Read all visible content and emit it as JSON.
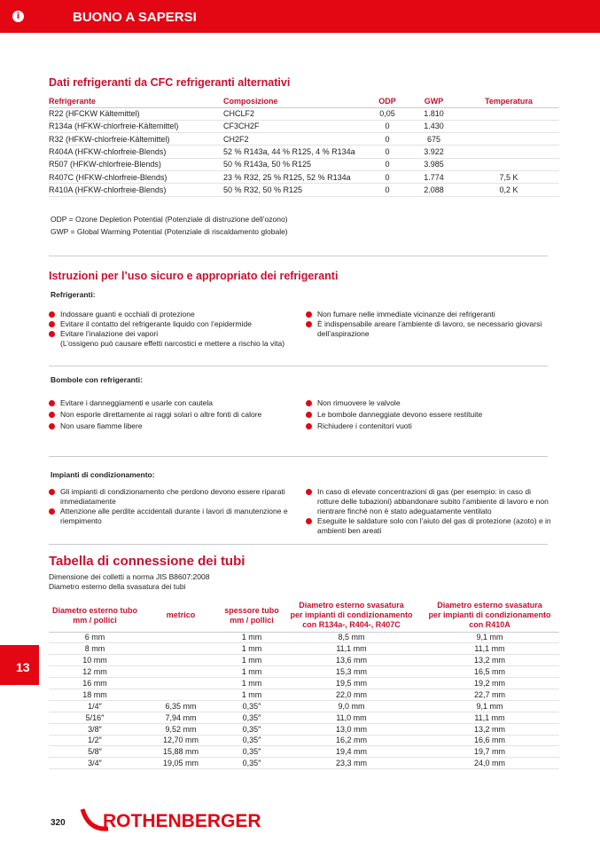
{
  "header": {
    "title": "BUONO A SAPERSI",
    "icon": "info-icon"
  },
  "refrigerants": {
    "title": "Dati refrigeranti da CFC refrigeranti alternativi",
    "columns": [
      "Refrigerante",
      "Composizione",
      "ODP",
      "GWP",
      "Temperatura"
    ],
    "rows": [
      [
        "R22 (HFCKW Kältemittel)",
        "CHCLF2",
        "0,05",
        "1.810",
        ""
      ],
      [
        "R134a (HFKW-chlorfreie-Kältemittel)",
        "CF3CH2F",
        "0",
        "1.430",
        ""
      ],
      [
        "R32 (HFKW-chlorfreie-Kältemittel)",
        "CH2F2",
        "0",
        "675",
        ""
      ],
      [
        "R404A (HFKW-chlorfreie-Blends)",
        "52 % R143a, 44 % R125, 4 % R134a",
        "0",
        "3.922",
        ""
      ],
      [
        "R507 (HFKW-chlorfreie-Blends)",
        "50 % R143a, 50 % R125",
        "0",
        "3.985",
        ""
      ],
      [
        "R407C (HFKW-chlorfreie-Blends)",
        "23 % R32, 25 % R125, 52 % R134a",
        "0",
        "1.774",
        "7,5 K"
      ],
      [
        "R410A (HFKW-chlorfreie-Blends)",
        "50 % R32, 50 % R125",
        "0",
        "2.088",
        "0,2 K"
      ]
    ],
    "notes": [
      "ODP = Ozone Depletion Potential (Potenziale di distruzione dell’ozono)",
      "GWP = Global Warming Potential  (Potenziale di riscaldamento globale)"
    ]
  },
  "safety": {
    "title": "Istruzioni per l’uso sicuro e appropriato dei refrigeranti",
    "groups": [
      {
        "label": "Refrigeranti:",
        "left": [
          "Indossare guanti e occhiali di protezione",
          "Evitare il contatto del refrigerante liquido con l’epidermide",
          "Evitare l’inalazione dei vapori\n(L’ossigeno può causare effetti narcostici e mettere a rischio la vita)"
        ],
        "right": [
          "Non fumare nelle immediate vicinanze dei refrigeranti",
          "È indispensabile areare l’ambiente di lavoro, se necessario giovarsi dell’aspirazione"
        ]
      },
      {
        "label": "Bombole con refrigeranti:",
        "left": [
          "Evitare i danneggiamenti e usarle con cautela",
          "Non esporle direttamente ai raggi solari o altre fonti di calore",
          "Non usare fiamme libere"
        ],
        "right": [
          "Non rimuovere le valvole",
          "Le bombole danneggiate devono essere restituite",
          "Richiudere i contenitori vuoti"
        ]
      },
      {
        "label": "Impianti di condizionamento:",
        "left": [
          "Gli impianti di condizionamento che perdono devono essere riparati immediatamente",
          "Attenzione alle perdite accidentali durante i lavori di manutenzione e riempimento"
        ],
        "right": [
          "In caso di elevate concentrazioni di gas (per esempio: in caso di rotture delle tubazioni) abbandonare subito l’ambiente di lavoro e non rientrare finché non è stato adeguatamente ventilato",
          "Eseguite le saldature solo con l’aiuto del gas di protezione (azoto) e in ambienti ben areati"
        ]
      }
    ]
  },
  "pipes": {
    "title": "Tabella di connessione dei tubi",
    "subtitle": [
      "Dimensione dei colletti a norma JIS B8607:2008",
      "Diametro esterno della svasatura dei tubi"
    ],
    "columns": [
      "Diametro esterno tubo\nmm / pollici",
      "metrico",
      "spessore tubo\nmm / pollici",
      "Diametro esterno svasatura\nper impianti di condizionamento\ncon R134a-, R404-, R407C",
      "Diametro esterno svasatura\nper impianti di condizionamento\ncon R410A"
    ],
    "rows": [
      [
        "6 mm",
        "",
        "1 mm",
        "8,5 mm",
        "9,1 mm"
      ],
      [
        "8 mm",
        "",
        "1 mm",
        "11,1 mm",
        "11,1 mm"
      ],
      [
        "10 mm",
        "",
        "1 mm",
        "13,6 mm",
        "13,2 mm"
      ],
      [
        "12 mm",
        "",
        "1 mm",
        "15,3 mm",
        "16,5 mm"
      ],
      [
        "16 mm",
        "",
        "1 mm",
        "19,5 mm",
        "19,2 mm"
      ],
      [
        "18 mm",
        "",
        "1 mm",
        "22,0 mm",
        "22,7 mm"
      ],
      [
        "1/4″",
        "6,35 mm",
        "0,35″",
        "9,0 mm",
        "9,1 mm"
      ],
      [
        "5/16″",
        "7,94 mm",
        "0,35″",
        "11,0 mm",
        "11,1 mm"
      ],
      [
        "3/8″",
        "9,52 mm",
        "0,35″",
        "13,0 mm",
        "13,2 mm"
      ],
      [
        "1/2″",
        "12,70 mm",
        "0,35″",
        "16,2 mm",
        "16,6 mm"
      ],
      [
        "5/8″",
        "15,88 mm",
        "0,35″",
        "19,4 mm",
        "19,7 mm"
      ],
      [
        "3/4″",
        "19,05 mm",
        "0,35″",
        "23,3 mm",
        "24,0 mm"
      ]
    ]
  },
  "side_tab": "13",
  "footer": {
    "page": "320",
    "logo": "ROTHENBERGER"
  },
  "colors": {
    "brand": "#e30613"
  }
}
